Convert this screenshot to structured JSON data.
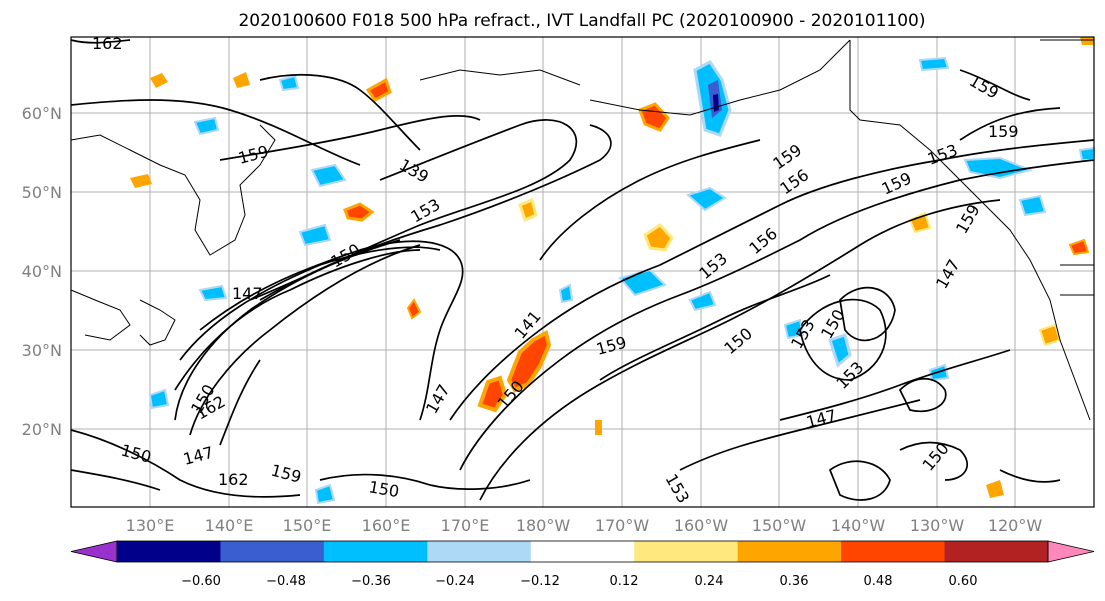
{
  "title": "2020100600 F018 500 hPa refract., IVT Landfall PC (2020100900 - 2020101100)",
  "lat_labels": [
    "60°N",
    "50°N",
    "40°N",
    "30°N",
    "20°N"
  ],
  "lon_labels": [
    "130°E",
    "140°E",
    "150°E",
    "160°E",
    "170°E",
    "180°W",
    "170°W",
    "160°W",
    "150°W",
    "140°W",
    "130°W",
    "120°W"
  ],
  "contour_labels": [
    "162",
    "159",
    "139",
    "159",
    "153",
    "150",
    "147",
    "150",
    "147",
    "141",
    "159",
    "153",
    "156",
    "159",
    "153",
    "150",
    "153",
    "147",
    "150",
    "159",
    "156",
    "159",
    "147",
    "153",
    "150",
    "147",
    "162",
    "159",
    "150",
    "162",
    "150",
    "159",
    "153",
    "150"
  ],
  "colorbar": {
    "ticks": [
      "−0.60",
      "−0.48",
      "−0.36",
      "−0.24",
      "−0.12",
      "0.12",
      "0.24",
      "0.36",
      "0.48",
      "0.60"
    ],
    "colors": [
      "#9932cc",
      "#00008b",
      "#3a5ecf",
      "#00bfff",
      "#add8f6",
      "#ffffff",
      "#ffe97f",
      "#ffa500",
      "#ff4500",
      "#b22222",
      "#ff88bb"
    ]
  }
}
